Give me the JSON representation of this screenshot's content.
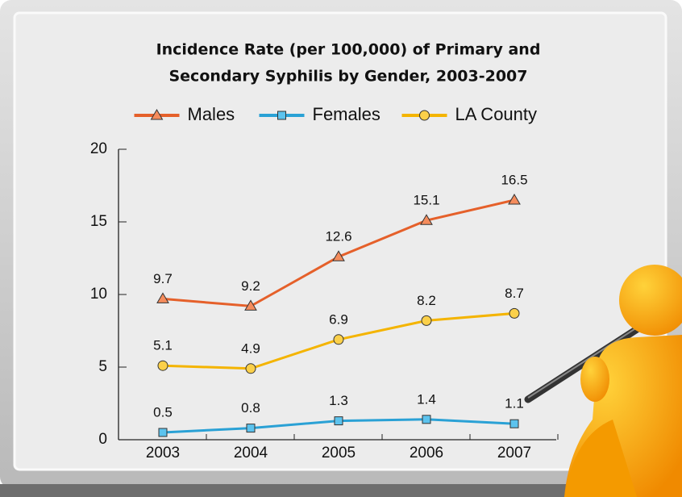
{
  "chart_data": {
    "type": "line",
    "title": [
      "Incidence Rate (per 100,000) of Primary and",
      "Secondary Syphilis by Gender, 2003-2007"
    ],
    "categories": [
      "2003",
      "2004",
      "2005",
      "2006",
      "2007"
    ],
    "series": [
      {
        "name": "Males",
        "color": "#e5602a",
        "marker": "triangle",
        "values": [
          9.7,
          9.2,
          12.6,
          15.1,
          16.5
        ]
      },
      {
        "name": "Females",
        "color": "#2aa1d5",
        "marker": "square",
        "values": [
          0.5,
          0.8,
          1.3,
          1.4,
          1.1
        ]
      },
      {
        "name": "LA County",
        "color": "#f4b400",
        "marker": "circle",
        "values": [
          5.1,
          4.9,
          6.9,
          8.2,
          8.7
        ]
      }
    ],
    "ylim": [
      0,
      20
    ],
    "yticks": [
      0,
      5,
      10,
      15,
      20
    ],
    "legend": "top"
  }
}
